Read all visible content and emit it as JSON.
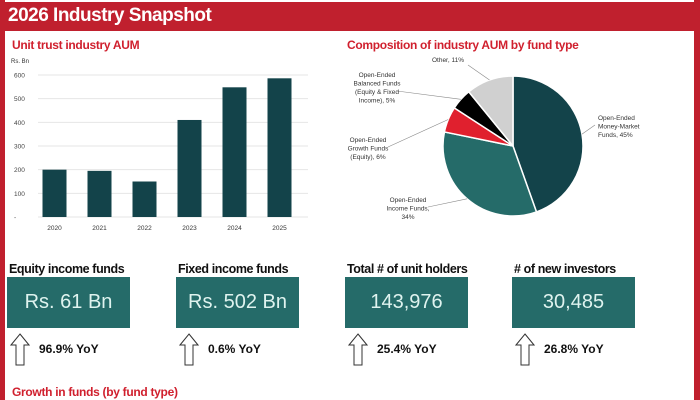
{
  "header": {
    "title": "2026 Industry Snapshot"
  },
  "colors": {
    "brand_red": "#c0202e",
    "teal_dark": "#13434a",
    "teal": "#256b69",
    "red": "#e0202e",
    "black": "#000000",
    "grey": "#d0d0d0"
  },
  "chart_data": [
    {
      "type": "bar",
      "title": "Unit trust industry AUM",
      "ylabel": "Rs. Bn",
      "categories": [
        "2020",
        "2021",
        "2022",
        "2023",
        "2024",
        "2025"
      ],
      "values": [
        200,
        195,
        150,
        410,
        548,
        586
      ],
      "ylim": [
        0,
        600
      ],
      "yticks": [
        "-",
        "100",
        "200",
        "300",
        "400",
        "500",
        "600"
      ],
      "grid": true
    },
    {
      "type": "pie",
      "title": "Composition of industry AUM by fund type",
      "slices": [
        {
          "label": "Open-Ended Money-Market Funds, 45%",
          "value": 45,
          "color": "#13434a"
        },
        {
          "label": "Open-Ended Income Funds, 34%",
          "value": 34,
          "color": "#256b69"
        },
        {
          "label": "Open-Ended Growth Funds (Equity), 6%",
          "value": 6,
          "color": "#e0202e"
        },
        {
          "label": "Open-Ended Balanced Funds (Equity & Fixed Income), 5%",
          "value": 5,
          "color": "#000000"
        },
        {
          "label": "Other, 11%",
          "value": 11,
          "color": "#d0d0d0"
        }
      ]
    }
  ],
  "kpis": [
    {
      "title": "Equity income funds",
      "value": "Rs. 61 Bn",
      "yoy": "96.9% YoY",
      "trend": "up"
    },
    {
      "title": "Fixed income funds",
      "value": "Rs. 502 Bn",
      "yoy": "0.6% YoY",
      "trend": "up"
    },
    {
      "title": "Total # of unit holders",
      "value": "143,976",
      "yoy": "25.4% YoY",
      "trend": "up"
    },
    {
      "title": "# of new investors",
      "value": "30,485",
      "yoy": "26.8% YoY",
      "trend": "up"
    }
  ],
  "footer": {
    "section_title": "Growth in funds (by fund type)"
  }
}
